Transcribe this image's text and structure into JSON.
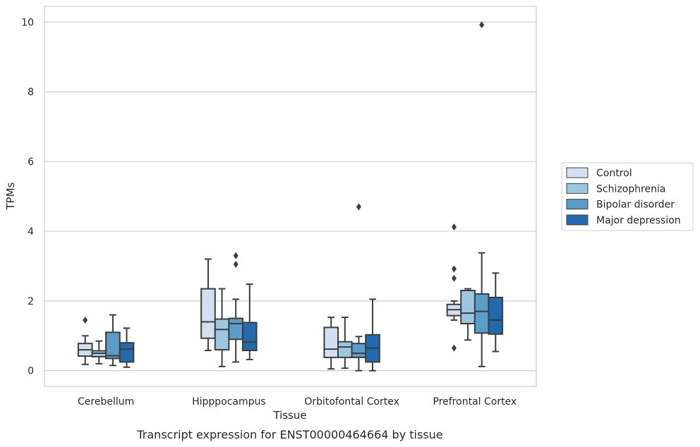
{
  "chart_data": {
    "type": "box",
    "caption": "Transcript expression for ENST00000464664 by tissue",
    "xlabel": "Tissue",
    "ylabel": "TPMs",
    "ylim": [
      -0.45,
      10.45
    ],
    "yticks": [
      0,
      2,
      4,
      6,
      8,
      10
    ],
    "grid": "horizontal",
    "legend_position": "right",
    "categories": [
      "Cerebellum",
      "Hipppocampus",
      "Orbitofontal Cortex",
      "Prefrontal Cortex"
    ],
    "series": [
      {
        "name": "Control",
        "color": "#d0e0f0",
        "boxes": [
          {
            "whislo": 0.18,
            "q1": 0.42,
            "med": 0.6,
            "q3": 0.78,
            "whishi": 1.0,
            "fliers": [
              1.45
            ]
          },
          {
            "whislo": 0.58,
            "q1": 0.93,
            "med": 1.4,
            "q3": 2.35,
            "whishi": 3.2,
            "fliers": []
          },
          {
            "whislo": 0.05,
            "q1": 0.38,
            "med": 0.62,
            "q3": 1.24,
            "whishi": 1.53,
            "fliers": []
          },
          {
            "whislo": 1.45,
            "q1": 1.58,
            "med": 1.75,
            "q3": 1.9,
            "whishi": 2.0,
            "fliers": [
              4.12,
              2.92,
              2.65,
              0.65
            ]
          }
        ]
      },
      {
        "name": "Schizophrenia",
        "color": "#9dc6e0",
        "boxes": [
          {
            "whislo": 0.2,
            "q1": 0.4,
            "med": 0.5,
            "q3": 0.57,
            "whishi": 0.85,
            "fliers": []
          },
          {
            "whislo": 0.12,
            "q1": 0.6,
            "med": 1.18,
            "q3": 1.48,
            "whishi": 2.35,
            "fliers": []
          },
          {
            "whislo": 0.07,
            "q1": 0.38,
            "med": 0.68,
            "q3": 0.83,
            "whishi": 1.53,
            "fliers": []
          },
          {
            "whislo": 0.88,
            "q1": 1.35,
            "med": 1.65,
            "q3": 2.3,
            "whishi": 2.35,
            "fliers": []
          }
        ]
      },
      {
        "name": "Bipolar disorder",
        "color": "#5a9dc9",
        "boxes": [
          {
            "whislo": 0.15,
            "q1": 0.35,
            "med": 0.43,
            "q3": 1.1,
            "whishi": 1.6,
            "fliers": []
          },
          {
            "whislo": 0.25,
            "q1": 0.9,
            "med": 1.35,
            "q3": 1.5,
            "whishi": 2.05,
            "fliers": [
              3.3,
              3.05
            ]
          },
          {
            "whislo": 0.0,
            "q1": 0.38,
            "med": 0.5,
            "q3": 0.78,
            "whishi": 0.98,
            "fliers": [
              4.7
            ]
          },
          {
            "whislo": 0.12,
            "q1": 1.08,
            "med": 1.7,
            "q3": 2.2,
            "whishi": 3.38,
            "fliers": [
              9.92
            ]
          }
        ]
      },
      {
        "name": "Major depression",
        "color": "#2369ad",
        "boxes": [
          {
            "whislo": 0.1,
            "q1": 0.25,
            "med": 0.62,
            "q3": 0.8,
            "whishi": 1.22,
            "fliers": []
          },
          {
            "whislo": 0.32,
            "q1": 0.58,
            "med": 0.82,
            "q3": 1.38,
            "whishi": 2.48,
            "fliers": []
          },
          {
            "whislo": 0.0,
            "q1": 0.25,
            "med": 0.65,
            "q3": 1.03,
            "whishi": 2.05,
            "fliers": []
          },
          {
            "whislo": 0.55,
            "q1": 1.05,
            "med": 1.45,
            "q3": 2.1,
            "whishi": 2.8,
            "fliers": []
          }
        ]
      }
    ]
  }
}
